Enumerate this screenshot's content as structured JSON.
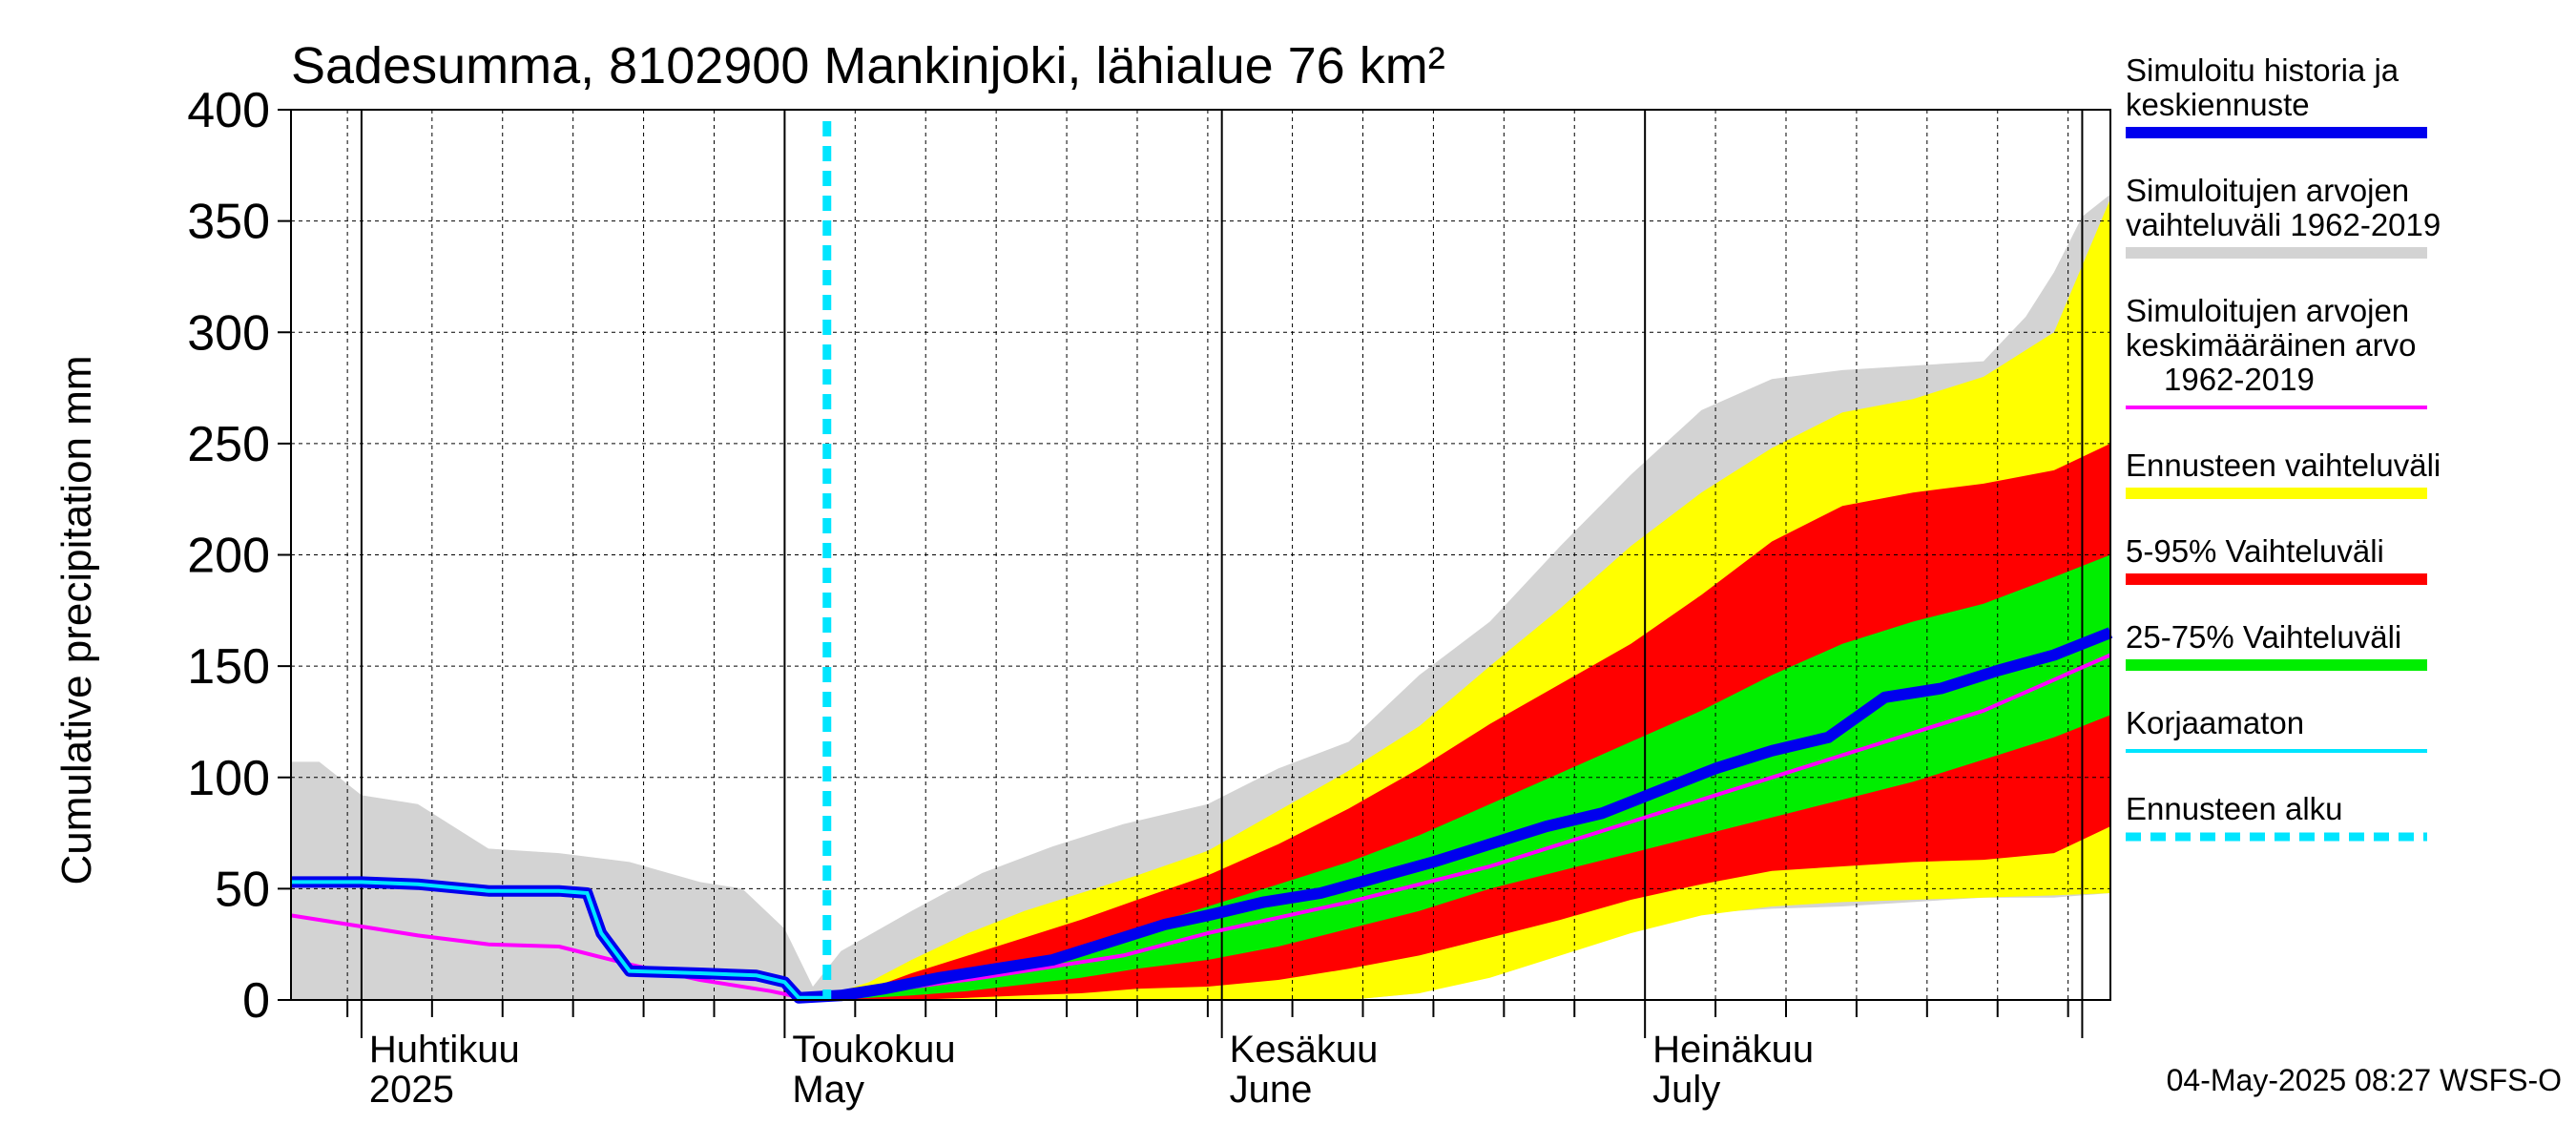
{
  "chart_data": {
    "type": "area",
    "title": "Sadesumma, 8102900 Mankinjoki, lähialue 76 km²",
    "ylabel": "Cumulative precipitation   mm",
    "ylim": [
      0,
      400
    ],
    "yticks": [
      "0",
      "50",
      "100",
      "150",
      "200",
      "250",
      "300",
      "350",
      "400"
    ],
    "xlim": [
      "2025-03-27",
      "2025-08-03"
    ],
    "grid": true,
    "legend_position": "right",
    "month_labels": [
      {
        "fi": "Huhtikuu",
        "en": "2025",
        "date": "2025-04-01"
      },
      {
        "fi": "Toukokuu",
        "en": "May",
        "date": "2025-05-01"
      },
      {
        "fi": "Kesäkuu",
        "en": "June",
        "date": "2025-06-01"
      },
      {
        "fi": "Heinäkuu",
        "en": "July",
        "date": "2025-07-01"
      }
    ],
    "forecast_start": "2025-05-04",
    "bands": [
      {
        "name": "Simuloitujen arvojen vaihteluväli 1962-2019",
        "color": "#d3d3d3",
        "x": [
          "2025-03-27",
          "2025-03-29",
          "2025-04-01",
          "2025-04-05",
          "2025-04-10",
          "2025-04-15",
          "2025-04-20",
          "2025-04-25",
          "2025-04-28",
          "2025-05-01",
          "2025-05-03",
          "2025-05-05",
          "2025-05-10",
          "2025-05-15",
          "2025-05-20",
          "2025-05-25",
          "2025-05-31",
          "2025-06-05",
          "2025-06-10",
          "2025-06-15",
          "2025-06-20",
          "2025-06-25",
          "2025-06-30",
          "2025-07-05",
          "2025-07-10",
          "2025-07-15",
          "2025-07-20",
          "2025-07-25",
          "2025-07-28",
          "2025-07-30",
          "2025-08-01",
          "2025-08-03"
        ],
        "upper": [
          107,
          107,
          92,
          88,
          68,
          66,
          62,
          53,
          50,
          32,
          6,
          22,
          40,
          57,
          69,
          79,
          88,
          104,
          116,
          146,
          170,
          204,
          236,
          265,
          279,
          283,
          285,
          287,
          307,
          327,
          352,
          362
        ],
        "lower": [
          0,
          0,
          0,
          0,
          0,
          0,
          0,
          0,
          0,
          0,
          0,
          0,
          0,
          0,
          0,
          0,
          0,
          0,
          0,
          3,
          12,
          25,
          34,
          39,
          41,
          42,
          44,
          46,
          46,
          46,
          47,
          48
        ]
      },
      {
        "name": "Ennusteen vaihteluväli",
        "color": "#ffff00",
        "x": [
          "2025-05-04",
          "2025-05-07",
          "2025-05-10",
          "2025-05-14",
          "2025-05-18",
          "2025-05-22",
          "2025-05-26",
          "2025-05-31",
          "2025-06-05",
          "2025-06-10",
          "2025-06-15",
          "2025-06-20",
          "2025-06-25",
          "2025-06-30",
          "2025-07-05",
          "2025-07-10",
          "2025-07-15",
          "2025-07-20",
          "2025-07-25",
          "2025-07-30",
          "2025-08-03"
        ],
        "upper": [
          2,
          8,
          18,
          30,
          40,
          48,
          56,
          67,
          85,
          103,
          123,
          150,
          176,
          204,
          228,
          248,
          264,
          270,
          280,
          300,
          360
        ],
        "lower": [
          0,
          0,
          0,
          0,
          0,
          0,
          0,
          0,
          0,
          0,
          3,
          10,
          20,
          30,
          38,
          42,
          44,
          45,
          46,
          47,
          48
        ]
      },
      {
        "name": "5-95% Vaihteluväli",
        "color": "#ff0000",
        "x": [
          "2025-05-04",
          "2025-05-07",
          "2025-05-10",
          "2025-05-14",
          "2025-05-18",
          "2025-05-22",
          "2025-05-26",
          "2025-05-31",
          "2025-06-05",
          "2025-06-10",
          "2025-06-15",
          "2025-06-20",
          "2025-06-25",
          "2025-06-30",
          "2025-07-05",
          "2025-07-10",
          "2025-07-15",
          "2025-07-20",
          "2025-07-25",
          "2025-07-30",
          "2025-08-03"
        ],
        "upper": [
          1,
          5,
          12,
          20,
          28,
          36,
          45,
          56,
          70,
          86,
          104,
          124,
          142,
          160,
          182,
          206,
          222,
          228,
          232,
          238,
          250
        ],
        "lower": [
          0,
          0,
          0,
          1,
          2,
          3,
          5,
          6,
          9,
          14,
          20,
          28,
          36,
          45,
          52,
          58,
          60,
          62,
          63,
          66,
          78
        ]
      },
      {
        "name": "25-75% Vaihteluväli",
        "color": "#00ee00",
        "x": [
          "2025-05-04",
          "2025-05-07",
          "2025-05-10",
          "2025-05-14",
          "2025-05-18",
          "2025-05-22",
          "2025-05-26",
          "2025-05-31",
          "2025-06-05",
          "2025-06-10",
          "2025-06-15",
          "2025-06-20",
          "2025-06-25",
          "2025-06-30",
          "2025-07-05",
          "2025-07-10",
          "2025-07-15",
          "2025-07-20",
          "2025-07-25",
          "2025-07-30",
          "2025-08-03"
        ],
        "upper": [
          1,
          3,
          7,
          12,
          17,
          24,
          32,
          42,
          52,
          62,
          74,
          88,
          102,
          116,
          130,
          146,
          160,
          170,
          178,
          190,
          200
        ],
        "lower": [
          0,
          1,
          2,
          4,
          7,
          10,
          14,
          18,
          24,
          32,
          40,
          50,
          58,
          66,
          74,
          82,
          90,
          98,
          108,
          118,
          128
        ]
      }
    ],
    "series": [
      {
        "name": "Simuloitujen arvojen keskimääräinen arvo 1962-2019",
        "color": "#ff00ff",
        "x": [
          "2025-03-27",
          "2025-04-01",
          "2025-04-05",
          "2025-04-10",
          "2025-04-15",
          "2025-04-20",
          "2025-04-25",
          "2025-04-30",
          "2025-05-03",
          "2025-05-08",
          "2025-05-15",
          "2025-05-25",
          "2025-05-31",
          "2025-06-10",
          "2025-06-20",
          "2025-06-30",
          "2025-07-10",
          "2025-07-20",
          "2025-07-25",
          "2025-08-03"
        ],
        "values": [
          38,
          33,
          29,
          25,
          24,
          16,
          9,
          4,
          0,
          4,
          10,
          20,
          30,
          44,
          60,
          80,
          100,
          120,
          130,
          155
        ]
      },
      {
        "name": "Korjaamaton",
        "color": "#00e5ff",
        "x": [
          "2025-03-27",
          "2025-04-01",
          "2025-04-05",
          "2025-04-10",
          "2025-04-15",
          "2025-04-17",
          "2025-04-18",
          "2025-04-20",
          "2025-04-25",
          "2025-04-29",
          "2025-05-01",
          "2025-05-02",
          "2025-05-04"
        ],
        "values": [
          53,
          53,
          52,
          49,
          49,
          48,
          30,
          13,
          12,
          11,
          8,
          1,
          1
        ]
      },
      {
        "name": "Simuloitu historia ja keskiennuste",
        "color": "#0022ff",
        "x": [
          "2025-03-27",
          "2025-04-01",
          "2025-04-05",
          "2025-04-10",
          "2025-04-15",
          "2025-04-17",
          "2025-04-18",
          "2025-04-20",
          "2025-04-25",
          "2025-04-29",
          "2025-05-01",
          "2025-05-02",
          "2025-05-05",
          "2025-05-08",
          "2025-05-12",
          "2025-05-16",
          "2025-05-20",
          "2025-05-25",
          "2025-05-28",
          "2025-05-31",
          "2025-06-04",
          "2025-06-08",
          "2025-06-12",
          "2025-06-16",
          "2025-06-20",
          "2025-06-24",
          "2025-06-28",
          "2025-07-02",
          "2025-07-06",
          "2025-07-10",
          "2025-07-14",
          "2025-07-18",
          "2025-07-22",
          "2025-07-26",
          "2025-07-30",
          "2025-08-03"
        ],
        "values": [
          53,
          53,
          52,
          49,
          49,
          48,
          30,
          13,
          12,
          11,
          8,
          1,
          2,
          5,
          10,
          14,
          18,
          28,
          34,
          38,
          44,
          48,
          55,
          62,
          70,
          78,
          84,
          94,
          104,
          112,
          118,
          136,
          140,
          148,
          155,
          165
        ]
      }
    ],
    "legend": [
      {
        "lines": [
          "Simuloitu historia ja",
          "keskiennuste"
        ],
        "color": "#0000ee",
        "style": "solid"
      },
      {
        "lines": [
          "Simuloitujen arvojen",
          "vaihteluväli 1962-2019"
        ],
        "color": "#d3d3d3",
        "style": "solid"
      },
      {
        "lines": [
          "Simuloitujen arvojen",
          "keskimääräinen arvo",
          "1962-2019"
        ],
        "color": "#ff00ff",
        "style": "thin"
      },
      {
        "lines": [
          "Ennusteen vaihteluväli"
        ],
        "color": "#ffff00",
        "style": "solid"
      },
      {
        "lines": [
          "5-95% Vaihteluväli"
        ],
        "color": "#ff0000",
        "style": "solid"
      },
      {
        "lines": [
          "25-75% Vaihteluväli"
        ],
        "color": "#00ee00",
        "style": "solid"
      },
      {
        "lines": [
          "Korjaamaton"
        ],
        "color": "#00e5ff",
        "style": "thin"
      },
      {
        "lines": [
          "Ennusteen alku"
        ],
        "color": "#00e5ff",
        "style": "dashed"
      }
    ]
  },
  "footer": "04-May-2025 08:27 WSFS-O"
}
